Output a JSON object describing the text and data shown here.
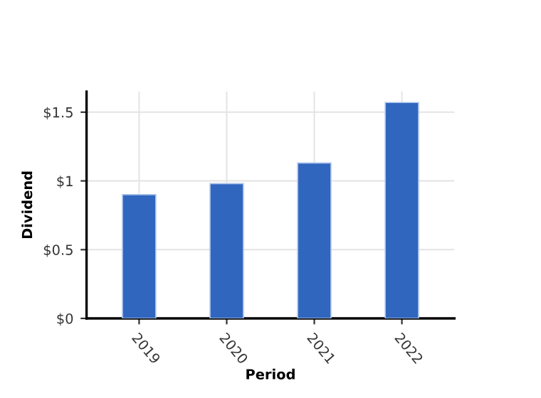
{
  "chart_data": {
    "type": "bar",
    "xlabel": "Period",
    "ylabel": "Dividend",
    "categories": [
      "2019",
      "2020",
      "2021",
      "2022"
    ],
    "values": [
      0.9,
      0.98,
      1.13,
      1.57
    ],
    "color": "#3066be",
    "ylim": [
      0,
      1.65
    ],
    "yticks": [
      {
        "value": 0,
        "label": "$0"
      },
      {
        "value": 0.5,
        "label": "$0.5"
      },
      {
        "value": 1,
        "label": "$1"
      },
      {
        "value": 1.5,
        "label": "$1.5"
      }
    ],
    "grid": true
  }
}
